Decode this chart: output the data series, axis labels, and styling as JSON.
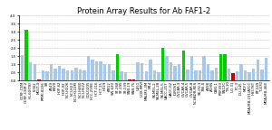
{
  "title": "Protein Array Results for Ab FAF1-2",
  "ylim": [
    0,
    4.0
  ],
  "yticks": [
    0.0,
    0.5,
    1.0,
    1.5,
    2.0,
    2.5,
    3.0,
    3.5,
    4.0
  ],
  "bars": [
    {
      "label": "CCRF-CEM",
      "value": 1.55,
      "color": "#a8c8e8"
    },
    {
      "label": "CCRF-CEM-2",
      "value": 3.1,
      "color": "#00cc00"
    },
    {
      "label": "HL-60(TB)",
      "value": 1.1,
      "color": "#a8c8e8"
    },
    {
      "label": "K-562",
      "value": 1.0,
      "color": "#a8c8e8"
    },
    {
      "label": "MOLT-4",
      "value": 0.08,
      "color": "#cc0000"
    },
    {
      "label": "RPMI-8226",
      "value": 0.65,
      "color": "#a8c8e8"
    },
    {
      "label": "SR",
      "value": 0.55,
      "color": "#a8c8e8"
    },
    {
      "label": "A549",
      "value": 1.0,
      "color": "#a8c8e8"
    },
    {
      "label": "EKVX",
      "value": 0.75,
      "color": "#a8c8e8"
    },
    {
      "label": "HOP-62",
      "value": 0.9,
      "color": "#a8c8e8"
    },
    {
      "label": "HOP-92",
      "value": 0.75,
      "color": "#a8c8e8"
    },
    {
      "label": "NCI-H226",
      "value": 0.65,
      "color": "#a8c8e8"
    },
    {
      "label": "NCI-H23",
      "value": 0.65,
      "color": "#a8c8e8"
    },
    {
      "label": "NCI-H322M",
      "value": 0.8,
      "color": "#a8c8e8"
    },
    {
      "label": "NCI-H460",
      "value": 0.7,
      "color": "#a8c8e8"
    },
    {
      "label": "NCI-H522",
      "value": 0.65,
      "color": "#a8c8e8"
    },
    {
      "label": "COLO205",
      "value": 1.5,
      "color": "#a8c8e8"
    },
    {
      "label": "HCC-2998",
      "value": 1.3,
      "color": "#a8c8e8"
    },
    {
      "label": "HCT-116",
      "value": 1.2,
      "color": "#a8c8e8"
    },
    {
      "label": "HCT-15",
      "value": 1.2,
      "color": "#a8c8e8"
    },
    {
      "label": "HT29",
      "value": 1.0,
      "color": "#a8c8e8"
    },
    {
      "label": "KM12",
      "value": 1.0,
      "color": "#a8c8e8"
    },
    {
      "label": "SW-620",
      "value": 0.6,
      "color": "#a8c8e8"
    },
    {
      "label": "SF-268",
      "value": 1.6,
      "color": "#00cc00"
    },
    {
      "label": "SF-295",
      "value": 0.55,
      "color": "#a8c8e8"
    },
    {
      "label": "SF-539",
      "value": 0.5,
      "color": "#a8c8e8"
    },
    {
      "label": "SNB-19",
      "value": 0.08,
      "color": "#cc0000"
    },
    {
      "label": "SNB-75",
      "value": 0.08,
      "color": "#cc0000"
    },
    {
      "label": "U251",
      "value": 1.1,
      "color": "#a8c8e8"
    },
    {
      "label": "LOX IMVI",
      "value": 1.05,
      "color": "#a8c8e8"
    },
    {
      "label": "MALME-3M",
      "value": 0.55,
      "color": "#a8c8e8"
    },
    {
      "label": "M14",
      "value": 1.3,
      "color": "#a8c8e8"
    },
    {
      "label": "SK-MEL-2",
      "value": 0.6,
      "color": "#a8c8e8"
    },
    {
      "label": "SK-MEL-28",
      "value": 0.5,
      "color": "#a8c8e8"
    },
    {
      "label": "SK-MEL-5",
      "value": 2.0,
      "color": "#00cc00"
    },
    {
      "label": "UACC-257",
      "value": 1.5,
      "color": "#a8c8e8"
    },
    {
      "label": "UACC-62",
      "value": 1.1,
      "color": "#a8c8e8"
    },
    {
      "label": "IGROV1",
      "value": 0.9,
      "color": "#a8c8e8"
    },
    {
      "label": "OVCAR-3",
      "value": 1.0,
      "color": "#a8c8e8"
    },
    {
      "label": "OVCAR-4",
      "value": 1.85,
      "color": "#00cc00"
    },
    {
      "label": "OVCAR-5",
      "value": 0.7,
      "color": "#a8c8e8"
    },
    {
      "label": "OVCAR-8",
      "value": 1.5,
      "color": "#a8c8e8"
    },
    {
      "label": "NCI/ADR-RES",
      "value": 0.65,
      "color": "#a8c8e8"
    },
    {
      "label": "SK-OV-3",
      "value": 0.6,
      "color": "#a8c8e8"
    },
    {
      "label": "786-0",
      "value": 1.5,
      "color": "#a8c8e8"
    },
    {
      "label": "A498",
      "value": 1.0,
      "color": "#a8c8e8"
    },
    {
      "label": "ACHN",
      "value": 0.65,
      "color": "#a8c8e8"
    },
    {
      "label": "CAKI-1",
      "value": 0.8,
      "color": "#a8c8e8"
    },
    {
      "label": "RXF393",
      "value": 1.6,
      "color": "#00cc00"
    },
    {
      "label": "SN12C",
      "value": 1.65,
      "color": "#00cc00"
    },
    {
      "label": "TK-10",
      "value": 0.75,
      "color": "#a8c8e8"
    },
    {
      "label": "UO-31",
      "value": 0.45,
      "color": "#cc0000"
    },
    {
      "label": "PC-3",
      "value": 0.55,
      "color": "#a8c8e8"
    },
    {
      "label": "DU-145",
      "value": 1.0,
      "color": "#a8c8e8"
    },
    {
      "label": "MCF7",
      "value": 0.65,
      "color": "#a8c8e8"
    },
    {
      "label": "MDA-MB-231/ATCC",
      "value": 0.5,
      "color": "#a8c8e8"
    },
    {
      "label": "HS578T",
      "value": 0.75,
      "color": "#a8c8e8"
    },
    {
      "label": "BT-549",
      "value": 1.3,
      "color": "#a8c8e8"
    },
    {
      "label": "T-47D",
      "value": 0.7,
      "color": "#a8c8e8"
    },
    {
      "label": "MDA-MB-468",
      "value": 1.4,
      "color": "#a8c8e8"
    }
  ],
  "background_color": "#ffffff",
  "grid_color": "#bbbbbb",
  "title_fontsize": 6,
  "tick_fontsize": 2.8,
  "bar_width": 0.75
}
